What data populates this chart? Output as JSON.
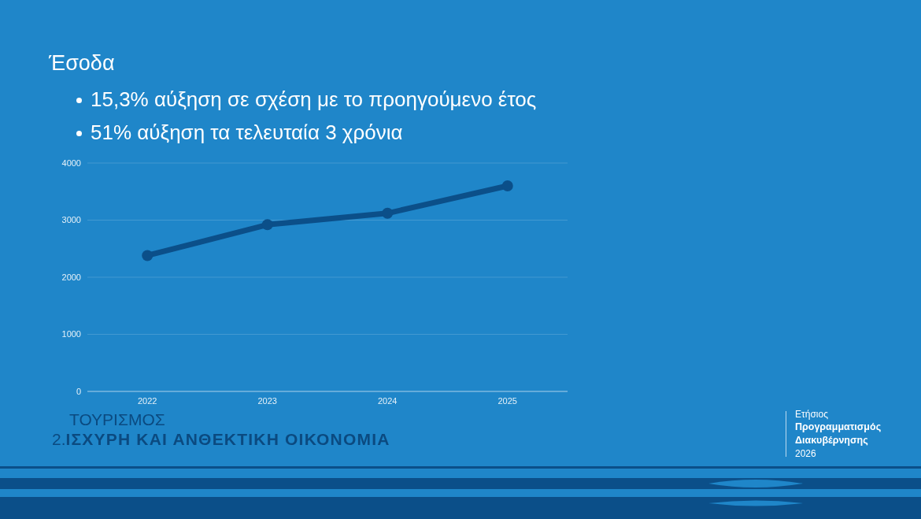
{
  "chart_data": {
    "type": "line",
    "title": "Έσοδα",
    "annotations": [
      "15,3% αύξηση σε σχέση με το προηγούμενο έτος",
      "51% αύξηση τα τελευταία 3 χρόνια",
      "ΤΟΥΡΙΣΜΟΣ",
      "2.ΙΣΧΥΡΗ ΚΑΙ ΑΝΘΕΚΤΙΚΗ ΟΙΚΟΝΟΜΙΑ",
      "Ετήσιος",
      "Προγραμματισμός",
      "Διακυβέρνησης",
      "2026"
    ],
    "categories": [
      "2022",
      "2023",
      "2024",
      "2025"
    ],
    "series": [
      {
        "color": "#0b4f89",
        "values": [
          2380,
          2920,
          3120,
          3600
        ]
      }
    ],
    "ylim": [
      0,
      4000
    ],
    "yticks": [
      0,
      1000,
      2000,
      3000,
      4000
    ],
    "grid": "y",
    "marker": "circle",
    "line_style": "solid"
  }
}
